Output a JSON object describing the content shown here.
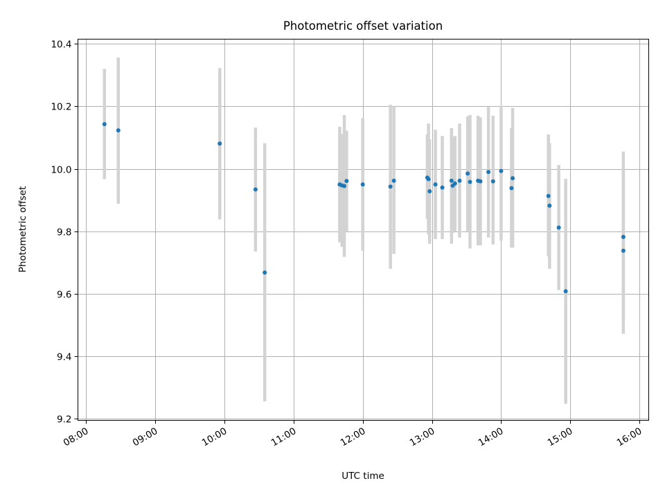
{
  "chart_data": {
    "type": "scatter",
    "title": "Photometric offset variation",
    "xlabel": "UTC time",
    "ylabel": "Photometric offset",
    "x_axis_kind": "time",
    "xlim": [
      "07:53",
      "16:08"
    ],
    "ylim": [
      9.195,
      10.415
    ],
    "x_ticks": [
      "08:00",
      "09:00",
      "10:00",
      "11:00",
      "12:00",
      "13:00",
      "14:00",
      "15:00",
      "16:00"
    ],
    "y_ticks": [
      9.2,
      9.4,
      9.6,
      9.8,
      10.0,
      10.2,
      10.4
    ],
    "grid": true,
    "point_color": "#1f77b4",
    "errorbar_color": "#d3d3d3",
    "series": [
      {
        "points": [
          {
            "t": "08:16",
            "y": 10.143,
            "lo": 9.967,
            "hi": 10.32
          },
          {
            "t": "08:28",
            "y": 10.123,
            "lo": 9.888,
            "hi": 10.356
          },
          {
            "t": "09:56",
            "y": 10.081,
            "lo": 9.838,
            "hi": 10.322
          },
          {
            "t": "10:27",
            "y": 9.934,
            "lo": 9.735,
            "hi": 10.132
          },
          {
            "t": "10:35",
            "y": 9.668,
            "lo": 9.256,
            "hi": 10.082
          },
          {
            "t": "11:40",
            "y": 9.95,
            "lo": 9.765,
            "hi": 10.135
          },
          {
            "t": "11:42",
            "y": 9.947,
            "lo": 9.75,
            "hi": 10.112
          },
          {
            "t": "11:44",
            "y": 9.945,
            "lo": 9.718,
            "hi": 10.172
          },
          {
            "t": "11:46",
            "y": 9.961,
            "lo": 9.8,
            "hi": 10.122
          },
          {
            "t": "12:00",
            "y": 9.95,
            "lo": 9.738,
            "hi": 10.162
          },
          {
            "t": "12:24",
            "y": 9.943,
            "lo": 9.68,
            "hi": 10.205
          },
          {
            "t": "12:27",
            "y": 9.962,
            "lo": 9.728,
            "hi": 10.2
          },
          {
            "t": "12:56",
            "y": 9.972,
            "lo": 9.84,
            "hi": 10.11
          },
          {
            "t": "12:57",
            "y": 9.967,
            "lo": 9.79,
            "hi": 10.145
          },
          {
            "t": "12:58",
            "y": 9.928,
            "lo": 9.76,
            "hi": 10.095
          },
          {
            "t": "13:03",
            "y": 9.95,
            "lo": 9.775,
            "hi": 10.125
          },
          {
            "t": "13:09",
            "y": 9.94,
            "lo": 9.775,
            "hi": 10.105
          },
          {
            "t": "13:17",
            "y": 9.962,
            "lo": 9.76,
            "hi": 10.13
          },
          {
            "t": "13:18",
            "y": 9.946,
            "lo": 9.795,
            "hi": 10.1
          },
          {
            "t": "13:20",
            "y": 9.953,
            "lo": 9.8,
            "hi": 10.105
          },
          {
            "t": "13:24",
            "y": 9.962,
            "lo": 9.78,
            "hi": 10.145
          },
          {
            "t": "13:31",
            "y": 9.985,
            "lo": 9.8,
            "hi": 10.168
          },
          {
            "t": "13:33",
            "y": 9.958,
            "lo": 9.745,
            "hi": 10.172
          },
          {
            "t": "13:40",
            "y": 9.962,
            "lo": 9.755,
            "hi": 10.17
          },
          {
            "t": "13:42",
            "y": 9.96,
            "lo": 9.755,
            "hi": 10.165
          },
          {
            "t": "13:49",
            "y": 9.99,
            "lo": 9.78,
            "hi": 10.198
          },
          {
            "t": "13:53",
            "y": 9.96,
            "lo": 9.758,
            "hi": 10.17
          },
          {
            "t": "14:00",
            "y": 9.993,
            "lo": 9.77,
            "hi": 10.202
          },
          {
            "t": "14:09",
            "y": 9.938,
            "lo": 9.748,
            "hi": 10.13
          },
          {
            "t": "14:10",
            "y": 9.97,
            "lo": 9.748,
            "hi": 10.195
          },
          {
            "t": "14:41",
            "y": 9.913,
            "lo": 9.72,
            "hi": 10.11
          },
          {
            "t": "14:42",
            "y": 9.882,
            "lo": 9.68,
            "hi": 10.082
          },
          {
            "t": "14:50",
            "y": 9.812,
            "lo": 9.612,
            "hi": 10.012
          },
          {
            "t": "14:56",
            "y": 9.608,
            "lo": 9.248,
            "hi": 9.968
          },
          {
            "t": "15:46",
            "y": 9.782,
            "lo": 9.515,
            "hi": 10.055
          },
          {
            "t": "15:46",
            "y": 9.738,
            "lo": 9.472,
            "hi": 10.005
          }
        ]
      }
    ]
  }
}
